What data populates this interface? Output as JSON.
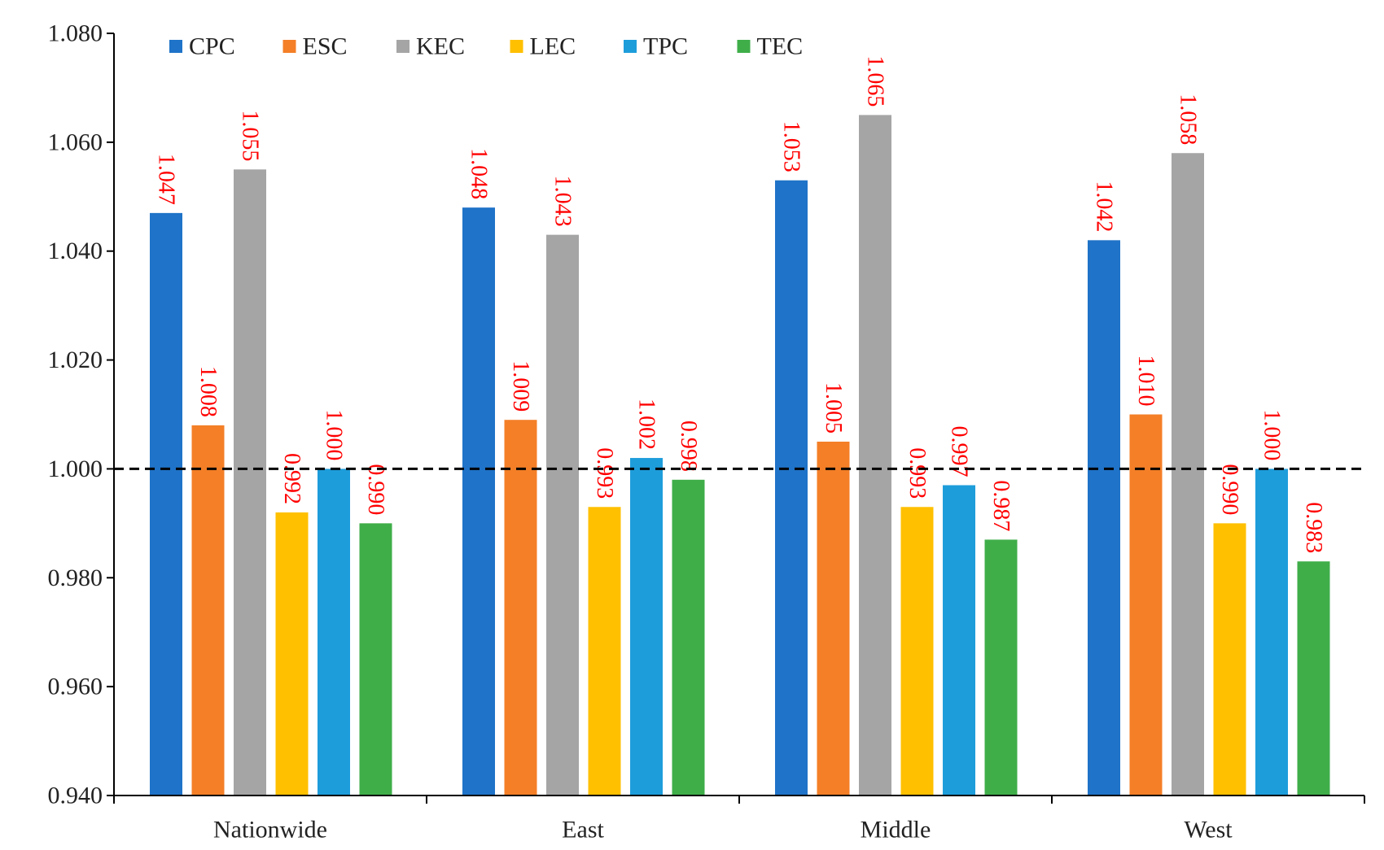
{
  "chart_data": {
    "type": "bar",
    "title": "",
    "xlabel": "",
    "ylabel": "",
    "ylim": [
      0.94,
      1.08
    ],
    "yticks": [
      "0.940",
      "0.960",
      "0.980",
      "1.000",
      "1.020",
      "1.040",
      "1.060",
      "1.080"
    ],
    "reference_line": 1.0,
    "legend_position": "top-left",
    "grid": false,
    "categories": [
      "Nationwide",
      "East",
      "Middle",
      "West"
    ],
    "series": [
      {
        "name": "CPC",
        "color": "#1f73c8",
        "values": [
          1.047,
          1.048,
          1.053,
          1.042
        ],
        "labels": [
          "1.047",
          "1.048",
          "1.053",
          "1.042"
        ]
      },
      {
        "name": "ESC",
        "color": "#f47f27",
        "values": [
          1.008,
          1.009,
          1.005,
          1.01
        ],
        "labels": [
          "1.008",
          "1.009",
          "1.005",
          "1.010"
        ]
      },
      {
        "name": "KEC",
        "color": "#a5a5a5",
        "values": [
          1.055,
          1.043,
          1.065,
          1.058
        ],
        "labels": [
          "1.055",
          "1.043",
          "1.065",
          "1.058"
        ]
      },
      {
        "name": "LEC",
        "color": "#ffc000",
        "values": [
          0.992,
          0.993,
          0.993,
          0.99
        ],
        "labels": [
          "0.992",
          "0.993",
          "0.993",
          "0.990"
        ]
      },
      {
        "name": "TPC",
        "color": "#1e9ddb",
        "values": [
          1.0,
          1.002,
          0.997,
          1.0
        ],
        "labels": [
          "1.000",
          "1.002",
          "0.997",
          "1.000"
        ]
      },
      {
        "name": "TEC",
        "color": "#3fae49",
        "values": [
          0.99,
          0.998,
          0.987,
          0.983
        ],
        "labels": [
          "0.990",
          "0.998",
          "0.987",
          "0.983"
        ]
      }
    ],
    "data_label_color": "#ff0000"
  }
}
